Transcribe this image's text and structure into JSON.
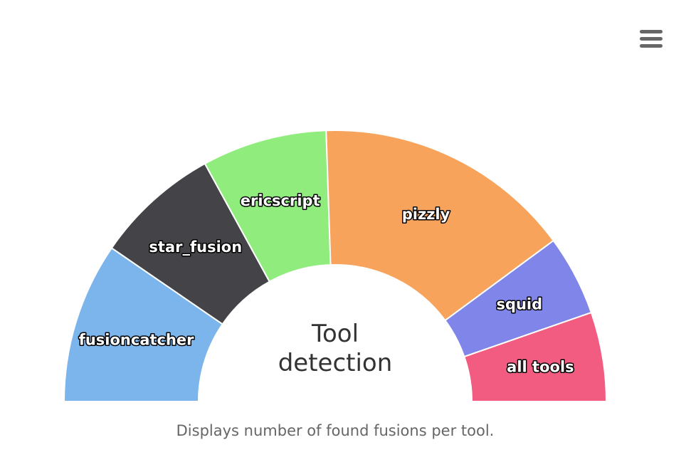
{
  "chart_data": {
    "type": "pie",
    "variant": "semi-donut",
    "title": "Tool\ndetection",
    "subtitle": "Displays number of found fusions per tool.",
    "slices": [
      {
        "name": "fusioncatcher",
        "value": 18,
        "color": "#7cb5ec"
      },
      {
        "name": "star_fusion",
        "value": 14,
        "color": "#434348"
      },
      {
        "name": "ericscript",
        "value": 14,
        "color": "#90ed7d"
      },
      {
        "name": "pizzly",
        "value": 29,
        "color": "#f7a35c"
      },
      {
        "name": "squid",
        "value": 9,
        "color": "#8085e9"
      },
      {
        "name": "all tools",
        "value": 10,
        "color": "#f15c80"
      }
    ],
    "legend": "none"
  },
  "menu": {
    "icon": "hamburger-menu-icon"
  }
}
